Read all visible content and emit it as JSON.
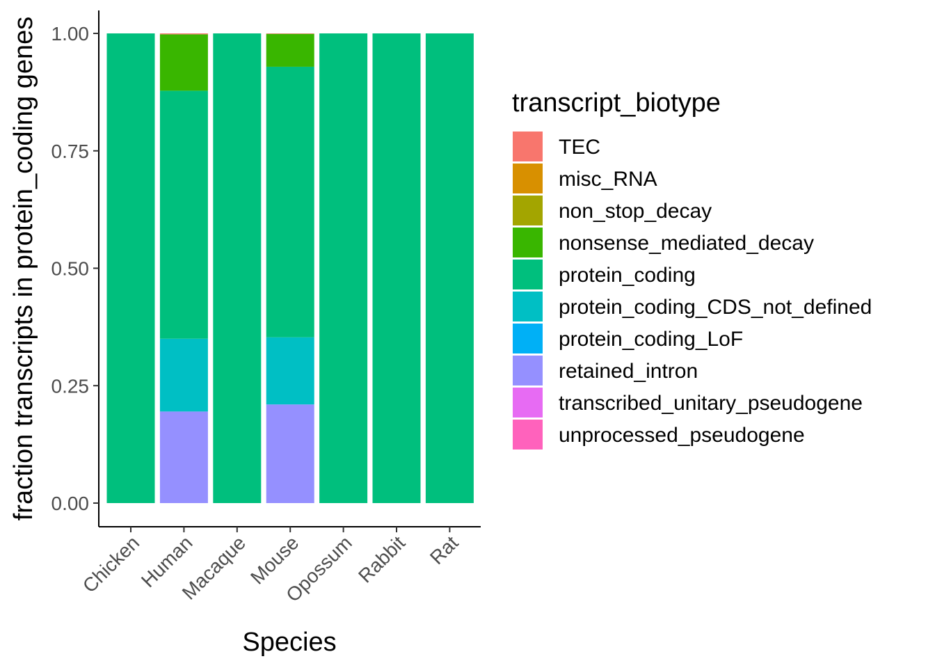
{
  "chart_data": {
    "type": "bar",
    "stacked": true,
    "xlabel": "Species",
    "ylabel": "fraction transcripts in protein_coding genes",
    "ylim": [
      0,
      1
    ],
    "yticks": [
      "0.00",
      "0.25",
      "0.50",
      "0.75",
      "1.00"
    ],
    "ytick_values": [
      0,
      0.25,
      0.5,
      0.75,
      1.0
    ],
    "grid": false,
    "legend_placement": "right",
    "legend_title": "transcript_biotype",
    "categories": [
      "Chicken",
      "Human",
      "Macaque",
      "Mouse",
      "Opossum",
      "Rabbit",
      "Rat"
    ],
    "series": [
      {
        "name": "TEC",
        "color": "#F8766D",
        "values": [
          0,
          0.002,
          0,
          0.001,
          0,
          0,
          0
        ]
      },
      {
        "name": "misc_RNA",
        "color": "#D89000",
        "values": [
          0,
          0,
          0,
          0,
          0,
          0,
          0
        ]
      },
      {
        "name": "non_stop_decay",
        "color": "#A3A500",
        "values": [
          0,
          0,
          0,
          0,
          0,
          0,
          0
        ]
      },
      {
        "name": "nonsense_mediated_decay",
        "color": "#39B600",
        "values": [
          0,
          0.12,
          0,
          0.07,
          0,
          0,
          0
        ]
      },
      {
        "name": "protein_coding",
        "color": "#00BF7D",
        "values": [
          1.0,
          0.528,
          1.0,
          0.576,
          1.0,
          1.0,
          1.0
        ]
      },
      {
        "name": "protein_coding_CDS_not_defined",
        "color": "#00BFC4",
        "values": [
          0,
          0.155,
          0,
          0.143,
          0,
          0,
          0
        ]
      },
      {
        "name": "protein_coding_LoF",
        "color": "#00B0F6",
        "values": [
          0,
          0,
          0,
          0,
          0,
          0,
          0
        ]
      },
      {
        "name": "retained_intron",
        "color": "#9590FF",
        "values": [
          0,
          0.195,
          0,
          0.21,
          0,
          0,
          0
        ]
      },
      {
        "name": "transcribed_unitary_pseudogene",
        "color": "#E76BF3",
        "values": [
          0,
          0,
          0,
          0,
          0,
          0,
          0
        ]
      },
      {
        "name": "unprocessed_pseudogene",
        "color": "#FF62BC",
        "values": [
          0,
          0,
          0,
          0,
          0,
          0,
          0
        ]
      }
    ]
  }
}
